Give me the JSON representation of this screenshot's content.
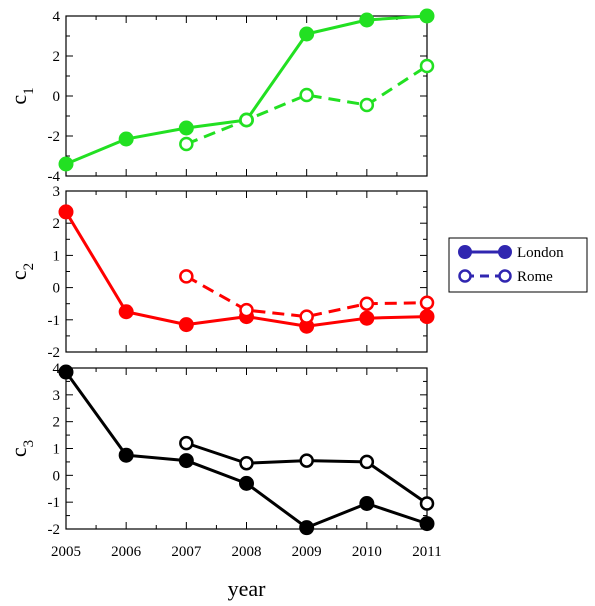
{
  "chart_data": {
    "type": "line",
    "x": [
      2005,
      2006,
      2007,
      2008,
      2009,
      2010,
      2011
    ],
    "x_tick_labels": [
      "2005",
      "2006",
      "2007",
      "2008",
      "2009",
      "2010",
      "2011"
    ],
    "xlabel": "year",
    "legend": {
      "placement": "right",
      "entries": [
        {
          "label": "London",
          "line_style": "solid",
          "marker": "filled-circle"
        },
        {
          "label": "Rome",
          "line_style": "dashed",
          "marker": "open-circle"
        }
      ],
      "color": "#3026b0"
    },
    "panels": [
      {
        "ylabel_base": "c",
        "ylabel_sub": "1",
        "ylim": [
          -4,
          4
        ],
        "yticks": [
          -4,
          -2,
          0,
          2,
          4
        ],
        "color": "#22e022",
        "series": [
          {
            "name": "London",
            "style": "solid",
            "marker": "filled",
            "values": [
              -3.4,
              -2.15,
              -1.6,
              -1.2,
              3.1,
              3.8,
              4.0
            ]
          },
          {
            "name": "Rome",
            "style": "dashed",
            "marker": "open",
            "values": [
              null,
              null,
              -2.4,
              -1.2,
              0.05,
              -0.45,
              1.5
            ]
          }
        ]
      },
      {
        "ylabel_base": "c",
        "ylabel_sub": "2",
        "ylim": [
          -2,
          3
        ],
        "yticks": [
          -2,
          -1,
          0,
          1,
          2,
          3
        ],
        "color": "#ff0000",
        "series": [
          {
            "name": "London",
            "style": "solid",
            "marker": "filled",
            "values": [
              2.35,
              -0.75,
              -1.15,
              -0.9,
              -1.2,
              -0.95,
              -0.9
            ]
          },
          {
            "name": "Rome",
            "style": "dashed",
            "marker": "open",
            "values": [
              null,
              null,
              0.35,
              -0.7,
              -0.9,
              -0.5,
              -0.47
            ]
          }
        ]
      },
      {
        "ylabel_base": "c",
        "ylabel_sub": "3",
        "ylim": [
          -2,
          4
        ],
        "yticks": [
          -2,
          -1,
          0,
          1,
          2,
          3,
          4
        ],
        "color": "#000000",
        "series": [
          {
            "name": "London",
            "style": "solid",
            "marker": "filled",
            "values": [
              3.85,
              0.75,
              0.55,
              -0.3,
              -1.95,
              -1.05,
              -1.8
            ]
          },
          {
            "name": "Rome",
            "style": "solid",
            "marker": "open",
            "values": [
              null,
              null,
              1.2,
              0.45,
              0.55,
              0.5,
              -1.05
            ]
          }
        ]
      }
    ]
  }
}
